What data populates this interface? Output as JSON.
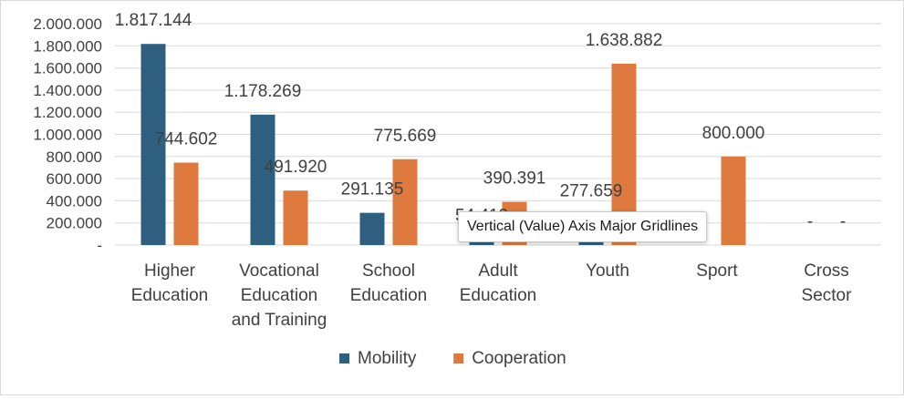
{
  "chart_data": {
    "type": "bar",
    "categories": [
      [
        "Higher",
        "Education"
      ],
      [
        "Vocational",
        "Education",
        "and Training"
      ],
      [
        "School",
        "Education"
      ],
      [
        "Adult",
        "Education"
      ],
      [
        "Youth"
      ],
      [
        "Sport"
      ],
      [
        "Cross",
        "Sector"
      ]
    ],
    "series": [
      {
        "name": "Mobility",
        "color": "#2e5f7f",
        "values": [
          1817144,
          1178269,
          291135,
          54419,
          277659,
          0,
          0
        ],
        "labels": [
          "1.817.144",
          "1.178.269",
          "291.135",
          "54.419",
          "277.659",
          "",
          "-"
        ]
      },
      {
        "name": "Cooperation",
        "color": "#df7a3e",
        "values": [
          744602,
          491920,
          775669,
          390391,
          1638882,
          800000,
          0
        ],
        "labels": [
          "744.602",
          "491.920",
          "775.669",
          "390.391",
          "1.638.882",
          "800.000",
          "-"
        ]
      }
    ],
    "ylim": [
      0,
      2000000
    ],
    "yticks": [
      0,
      200000,
      400000,
      600000,
      800000,
      1000000,
      1200000,
      1400000,
      1600000,
      1800000,
      2000000
    ],
    "ytick_labels": [
      "-",
      "200.000",
      "400.000",
      "600.000",
      "800.000",
      "1.000.000",
      "1.200.000",
      "1.400.000",
      "1.600.000",
      "1.800.000",
      "2.000.000"
    ],
    "grid": true,
    "legend_position": "bottom"
  },
  "tooltip": {
    "text": "Vertical (Value) Axis Major Gridlines"
  }
}
